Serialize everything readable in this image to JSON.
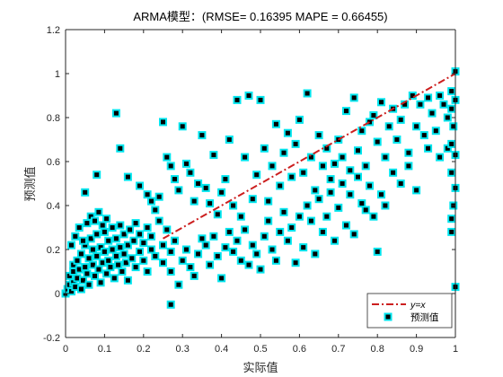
{
  "chart_data": {
    "type": "scatter",
    "title": "ARMA模型：(RMSE= 0.16395 MAPE  = 0.66455)",
    "xlabel": "实际值",
    "ylabel": "预测值",
    "xlim": [
      0,
      1
    ],
    "ylim": [
      -0.2,
      1.2
    ],
    "xticks": [
      "0",
      "0.1",
      "0.2",
      "0.3",
      "0.4",
      "0.5",
      "0.6",
      "0.7",
      "0.8",
      "0.9",
      "1"
    ],
    "yticks": [
      "-0.2",
      "0",
      "0.2",
      "0.4",
      "0.6",
      "0.8",
      "1",
      "1.2"
    ],
    "grid": false,
    "legend_position": "bottom-right",
    "reference_line": {
      "name": "y=x",
      "color": "#cc1f1f",
      "style": "dash-dot",
      "from": [
        0.25,
        0.25
      ],
      "to": [
        1.0,
        1.0
      ]
    },
    "series": [
      {
        "name": "预测值",
        "marker": "square",
        "fill_color": "#000000",
        "edge_color": "#00e5ee",
        "points": [
          [
            0.0,
            0.0
          ],
          [
            0.005,
            0.02
          ],
          [
            0.01,
            0.04
          ],
          [
            0.01,
            0.08
          ],
          [
            0.015,
            0.01
          ],
          [
            0.02,
            0.05
          ],
          [
            0.02,
            0.1
          ],
          [
            0.02,
            0.13
          ],
          [
            0.025,
            0.03
          ],
          [
            0.03,
            0.07
          ],
          [
            0.03,
            0.15
          ],
          [
            0.035,
            0.11
          ],
          [
            0.04,
            0.02
          ],
          [
            0.04,
            0.18
          ],
          [
            0.045,
            0.06
          ],
          [
            0.05,
            0.12
          ],
          [
            0.05,
            0.22
          ],
          [
            0.055,
            0.09
          ],
          [
            0.06,
            0.16
          ],
          [
            0.06,
            0.04
          ],
          [
            0.065,
            0.25
          ],
          [
            0.07,
            0.13
          ],
          [
            0.07,
            0.2
          ],
          [
            0.075,
            0.08
          ],
          [
            0.08,
            0.17
          ],
          [
            0.08,
            0.27
          ],
          [
            0.085,
            0.11
          ],
          [
            0.09,
            0.21
          ],
          [
            0.09,
            0.05
          ],
          [
            0.095,
            0.14
          ],
          [
            0.1,
            0.19
          ],
          [
            0.1,
            0.28
          ],
          [
            0.105,
            0.09
          ],
          [
            0.11,
            0.15
          ],
          [
            0.11,
            0.24
          ],
          [
            0.115,
            0.12
          ],
          [
            0.12,
            0.2
          ],
          [
            0.12,
            0.3
          ],
          [
            0.125,
            0.07
          ],
          [
            0.13,
            0.17
          ],
          [
            0.13,
            0.25
          ],
          [
            0.135,
            0.13
          ],
          [
            0.14,
            0.21
          ],
          [
            0.14,
            0.31
          ],
          [
            0.145,
            0.1
          ],
          [
            0.15,
            0.18
          ],
          [
            0.15,
            0.27
          ],
          [
            0.155,
            0.14
          ],
          [
            0.16,
            0.22
          ],
          [
            0.16,
            0.06
          ],
          [
            0.165,
            0.29
          ],
          [
            0.17,
            0.16
          ],
          [
            0.175,
            0.24
          ],
          [
            0.18,
            0.12
          ],
          [
            0.18,
            0.32
          ],
          [
            0.19,
            0.19
          ],
          [
            0.19,
            0.27
          ],
          [
            0.2,
            0.15
          ],
          [
            0.2,
            0.23
          ],
          [
            0.21,
            0.3
          ],
          [
            0.21,
            0.1
          ],
          [
            0.22,
            0.2
          ],
          [
            0.22,
            0.26
          ],
          [
            0.23,
            0.17
          ],
          [
            0.24,
            0.33
          ],
          [
            0.25,
            0.22
          ],
          [
            0.25,
            0.14
          ],
          [
            0.26,
            0.29
          ],
          [
            0.27,
            0.19
          ],
          [
            0.28,
            0.24
          ],
          [
            0.015,
            0.22
          ],
          [
            0.025,
            0.26
          ],
          [
            0.035,
            0.3
          ],
          [
            0.045,
            0.24
          ],
          [
            0.055,
            0.32
          ],
          [
            0.065,
            0.35
          ],
          [
            0.075,
            0.33
          ],
          [
            0.085,
            0.37
          ],
          [
            0.095,
            0.31
          ],
          [
            0.105,
            0.34
          ],
          [
            0.05,
            0.46
          ],
          [
            0.08,
            0.54
          ],
          [
            0.13,
            0.82
          ],
          [
            0.14,
            0.66
          ],
          [
            0.16,
            0.53
          ],
          [
            0.19,
            0.49
          ],
          [
            0.21,
            0.45
          ],
          [
            0.22,
            0.42
          ],
          [
            0.24,
            0.44
          ],
          [
            0.23,
            0.38
          ],
          [
            0.25,
            0.78
          ],
          [
            0.26,
            0.62
          ],
          [
            0.27,
            0.58
          ],
          [
            0.28,
            0.52
          ],
          [
            0.29,
            0.47
          ],
          [
            0.3,
            0.76
          ],
          [
            0.31,
            0.59
          ],
          [
            0.32,
            0.55
          ],
          [
            0.33,
            0.42
          ],
          [
            0.34,
            0.5
          ],
          [
            0.35,
            0.72
          ],
          [
            0.36,
            0.48
          ],
          [
            0.37,
            0.41
          ],
          [
            0.38,
            0.63
          ],
          [
            0.39,
            0.36
          ],
          [
            0.4,
            0.46
          ],
          [
            0.41,
            0.52
          ],
          [
            0.42,
            0.7
          ],
          [
            0.43,
            0.4
          ],
          [
            0.44,
            0.88
          ],
          [
            0.45,
            0.35
          ],
          [
            0.46,
            0.62
          ],
          [
            0.47,
            0.9
          ],
          [
            0.48,
            0.43
          ],
          [
            0.49,
            0.54
          ],
          [
            0.5,
            0.88
          ],
          [
            0.51,
            0.66
          ],
          [
            0.52,
            0.42
          ],
          [
            0.53,
            0.58
          ],
          [
            0.54,
            0.77
          ],
          [
            0.55,
            0.49
          ],
          [
            0.56,
            0.64
          ],
          [
            0.57,
            0.73
          ],
          [
            0.58,
            0.53
          ],
          [
            0.59,
            0.68
          ],
          [
            0.6,
            0.79
          ],
          [
            0.61,
            0.55
          ],
          [
            0.62,
            0.91
          ],
          [
            0.63,
            0.62
          ],
          [
            0.64,
            0.47
          ],
          [
            0.65,
            0.72
          ],
          [
            0.66,
            0.58
          ],
          [
            0.67,
            0.66
          ],
          [
            0.68,
            0.52
          ],
          [
            0.69,
            0.59
          ],
          [
            0.7,
            0.7
          ],
          [
            0.71,
            0.62
          ],
          [
            0.72,
            0.83
          ],
          [
            0.73,
            0.56
          ],
          [
            0.74,
            0.89
          ],
          [
            0.75,
            0.65
          ],
          [
            0.76,
            0.74
          ],
          [
            0.77,
            0.58
          ],
          [
            0.78,
            0.78
          ],
          [
            0.79,
            0.81
          ],
          [
            0.8,
            0.69
          ],
          [
            0.81,
            0.87
          ],
          [
            0.82,
            0.62
          ],
          [
            0.83,
            0.76
          ],
          [
            0.84,
            0.84
          ],
          [
            0.85,
            0.7
          ],
          [
            0.86,
            0.79
          ],
          [
            0.87,
            0.86
          ],
          [
            0.88,
            0.64
          ],
          [
            0.89,
            0.9
          ],
          [
            0.9,
            0.76
          ],
          [
            0.91,
            0.86
          ],
          [
            0.92,
            0.72
          ],
          [
            0.93,
            0.89
          ],
          [
            0.94,
            0.82
          ],
          [
            0.95,
            0.74
          ],
          [
            0.96,
            0.9
          ],
          [
            0.97,
            0.86
          ],
          [
            0.98,
            0.8
          ],
          [
            0.99,
            0.84
          ],
          [
            0.99,
            0.92
          ],
          [
            1.0,
            0.88
          ],
          [
            1.0,
            1.01
          ],
          [
            0.995,
            0.76
          ],
          [
            0.98,
            0.66
          ],
          [
            0.99,
            0.68
          ],
          [
            1.0,
            0.63
          ],
          [
            0.99,
            0.55
          ],
          [
            1.0,
            0.48
          ],
          [
            0.995,
            0.4
          ],
          [
            0.99,
            0.34
          ],
          [
            0.99,
            0.28
          ],
          [
            1.0,
            0.03
          ],
          [
            0.96,
            0.62
          ],
          [
            0.93,
            0.66
          ],
          [
            0.27,
            0.1
          ],
          [
            0.27,
            -0.05
          ],
          [
            0.29,
            0.04
          ],
          [
            0.3,
            0.15
          ],
          [
            0.31,
            0.2
          ],
          [
            0.32,
            0.12
          ],
          [
            0.33,
            0.08
          ],
          [
            0.34,
            0.18
          ],
          [
            0.35,
            0.25
          ],
          [
            0.36,
            0.22
          ],
          [
            0.37,
            0.13
          ],
          [
            0.38,
            0.26
          ],
          [
            0.39,
            0.17
          ],
          [
            0.4,
            0.07
          ],
          [
            0.41,
            0.21
          ],
          [
            0.42,
            0.28
          ],
          [
            0.43,
            0.19
          ],
          [
            0.44,
            0.24
          ],
          [
            0.45,
            0.15
          ],
          [
            0.46,
            0.29
          ],
          [
            0.47,
            0.13
          ],
          [
            0.48,
            0.22
          ],
          [
            0.49,
            0.18
          ],
          [
            0.5,
            0.11
          ],
          [
            0.51,
            0.26
          ],
          [
            0.52,
            0.33
          ],
          [
            0.53,
            0.2
          ],
          [
            0.54,
            0.15
          ],
          [
            0.55,
            0.28
          ],
          [
            0.56,
            0.37
          ],
          [
            0.57,
            0.24
          ],
          [
            0.58,
            0.3
          ],
          [
            0.59,
            0.14
          ],
          [
            0.6,
            0.35
          ],
          [
            0.61,
            0.21
          ],
          [
            0.62,
            0.4
          ],
          [
            0.63,
            0.33
          ],
          [
            0.64,
            0.18
          ],
          [
            0.65,
            0.43
          ],
          [
            0.66,
            0.28
          ],
          [
            0.67,
            0.35
          ],
          [
            0.68,
            0.46
          ],
          [
            0.69,
            0.24
          ],
          [
            0.7,
            0.39
          ],
          [
            0.71,
            0.5
          ],
          [
            0.72,
            0.31
          ],
          [
            0.73,
            0.45
          ],
          [
            0.74,
            0.27
          ],
          [
            0.75,
            0.53
          ],
          [
            0.76,
            0.41
          ],
          [
            0.77,
            0.38
          ],
          [
            0.78,
            0.49
          ],
          [
            0.79,
            0.35
          ],
          [
            0.8,
            0.19
          ],
          [
            0.81,
            0.45
          ],
          [
            0.82,
            0.4
          ],
          [
            0.84,
            0.55
          ],
          [
            0.86,
            0.5
          ],
          [
            0.88,
            0.58
          ],
          [
            0.9,
            0.47
          ]
        ]
      }
    ]
  }
}
